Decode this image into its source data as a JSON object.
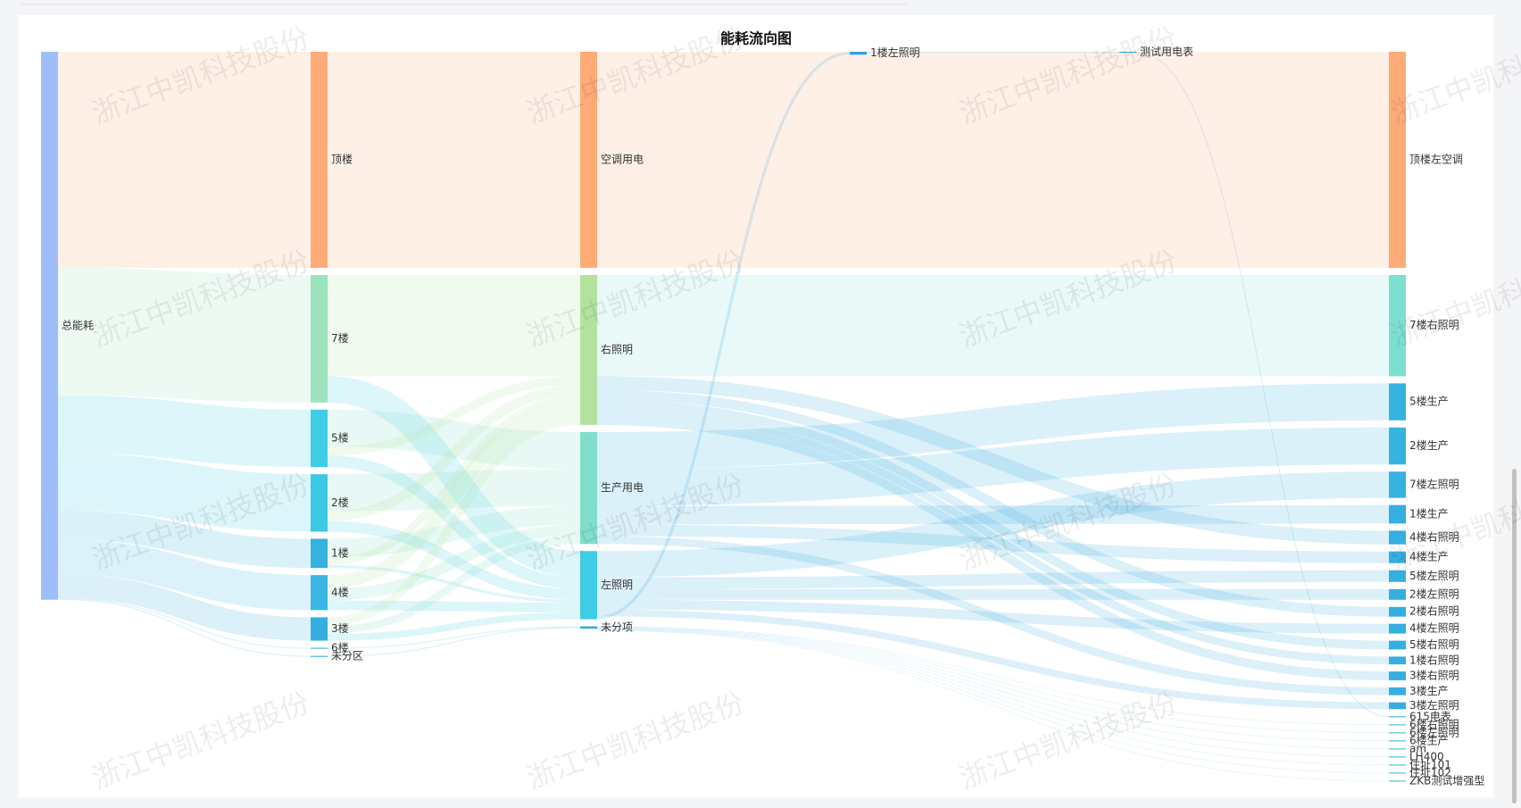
{
  "chart_data": {
    "type": "sankey",
    "title": "能耗流向图",
    "watermark": "浙江中凯科技股份",
    "nodes": [
      {
        "name": "总能耗",
        "color": "#9fbef9"
      },
      {
        "name": "顶楼",
        "color": "#ffab78"
      },
      {
        "name": "7楼",
        "color": "#9de3be"
      },
      {
        "name": "5楼",
        "color": "#3fcde6"
      },
      {
        "name": "2楼",
        "color": "#3dc8e4"
      },
      {
        "name": "1楼",
        "color": "#35b2e0"
      },
      {
        "name": "4楼",
        "color": "#3bb6e3"
      },
      {
        "name": "3楼",
        "color": "#35ade0"
      },
      {
        "name": "6楼",
        "color": "#35ade0"
      },
      {
        "name": "未分区",
        "color": "#35ade0"
      },
      {
        "name": "空调用电",
        "color": "#ffab78"
      },
      {
        "name": "右照明",
        "color": "#b4e29e"
      },
      {
        "name": "生产用电",
        "color": "#80deca"
      },
      {
        "name": "左照明",
        "color": "#3fcde6"
      },
      {
        "name": "未分项",
        "color": "#35ade0"
      },
      {
        "name": "1楼左照明",
        "color": "#35a0e0"
      },
      {
        "name": "测试用电表",
        "color": "#35a0e0"
      },
      {
        "name": "顶楼左空调",
        "color": "#ffab78"
      },
      {
        "name": "7楼右照明",
        "color": "#7ddfd0"
      },
      {
        "name": "5楼生产",
        "color": "#35b4e2"
      },
      {
        "name": "2楼生产",
        "color": "#35b4e2"
      },
      {
        "name": "7楼左照明",
        "color": "#35b4e2"
      },
      {
        "name": "1楼生产",
        "color": "#35aee0"
      },
      {
        "name": "4楼右照明",
        "color": "#35aee0"
      },
      {
        "name": "4楼生产",
        "color": "#35aee0"
      },
      {
        "name": "5楼左照明",
        "color": "#35aee0"
      },
      {
        "name": "2楼左照明",
        "color": "#35aee0"
      },
      {
        "name": "2楼右照明",
        "color": "#35aee0"
      },
      {
        "name": "4楼左照明",
        "color": "#35aee0"
      },
      {
        "name": "5楼右照明",
        "color": "#35aee0"
      },
      {
        "name": "1楼右照明",
        "color": "#35aee0"
      },
      {
        "name": "3楼右照明",
        "color": "#35aee0"
      },
      {
        "name": "3楼生产",
        "color": "#35aee0"
      },
      {
        "name": "3楼左照明",
        "color": "#35aee0"
      },
      {
        "name": "615电表",
        "color": "#35aee0"
      },
      {
        "name": "6楼右照明",
        "color": "#35aee0"
      },
      {
        "name": "6楼左照明",
        "color": "#35aee0"
      },
      {
        "name": "6楼生产",
        "color": "#35aee0"
      },
      {
        "name": "am",
        "color": "#35aee0"
      },
      {
        "name": "LH400",
        "color": "#35aee0"
      },
      {
        "name": "住址101",
        "color": "#35aee0"
      },
      {
        "name": "住址102",
        "color": "#35aee0"
      },
      {
        "name": "ZKB测试增强型",
        "color": "#35aee0"
      }
    ],
    "links": [
      {
        "source": 0,
        "target": 1,
        "value": 222
      },
      {
        "source": 0,
        "target": 2,
        "value": 131
      },
      {
        "source": 0,
        "target": 3,
        "value": 59
      },
      {
        "source": 0,
        "target": 4,
        "value": 59
      },
      {
        "source": 0,
        "target": 5,
        "value": 30
      },
      {
        "source": 0,
        "target": 6,
        "value": 36
      },
      {
        "source": 0,
        "target": 7,
        "value": 24
      },
      {
        "source": 0,
        "target": 8,
        "value": 1
      },
      {
        "source": 0,
        "target": 9,
        "value": 1
      },
      {
        "source": 1,
        "target": 10,
        "value": 222
      },
      {
        "source": 2,
        "target": 11,
        "value": 104
      },
      {
        "source": 2,
        "target": 13,
        "value": 27
      },
      {
        "source": 3,
        "target": 12,
        "value": 38
      },
      {
        "source": 3,
        "target": 11,
        "value": 9
      },
      {
        "source": 3,
        "target": 13,
        "value": 12
      },
      {
        "source": 4,
        "target": 12,
        "value": 38
      },
      {
        "source": 4,
        "target": 11,
        "value": 10
      },
      {
        "source": 4,
        "target": 13,
        "value": 11
      },
      {
        "source": 5,
        "target": 12,
        "value": 19
      },
      {
        "source": 5,
        "target": 11,
        "value": 8
      },
      {
        "source": 5,
        "target": 13,
        "value": 3
      },
      {
        "source": 6,
        "target": 11,
        "value": 14
      },
      {
        "source": 6,
        "target": 12,
        "value": 12
      },
      {
        "source": 6,
        "target": 13,
        "value": 10
      },
      {
        "source": 7,
        "target": 11,
        "value": 9
      },
      {
        "source": 7,
        "target": 12,
        "value": 8
      },
      {
        "source": 7,
        "target": 13,
        "value": 7
      },
      {
        "source": 8,
        "target": 14,
        "value": 1
      },
      {
        "source": 9,
        "target": 14,
        "value": 1
      },
      {
        "source": 10,
        "target": 17,
        "value": 222
      },
      {
        "source": 11,
        "target": 18,
        "value": 104
      },
      {
        "source": 11,
        "target": 23,
        "value": 14
      },
      {
        "source": 11,
        "target": 27,
        "value": 10
      },
      {
        "source": 11,
        "target": 29,
        "value": 9
      },
      {
        "source": 11,
        "target": 30,
        "value": 8
      },
      {
        "source": 11,
        "target": 31,
        "value": 9
      },
      {
        "source": 12,
        "target": 19,
        "value": 38
      },
      {
        "source": 12,
        "target": 20,
        "value": 38
      },
      {
        "source": 12,
        "target": 22,
        "value": 19
      },
      {
        "source": 12,
        "target": 24,
        "value": 12
      },
      {
        "source": 12,
        "target": 32,
        "value": 8
      },
      {
        "source": 13,
        "target": 21,
        "value": 27
      },
      {
        "source": 13,
        "target": 25,
        "value": 12
      },
      {
        "source": 13,
        "target": 26,
        "value": 11
      },
      {
        "source": 13,
        "target": 28,
        "value": 10
      },
      {
        "source": 13,
        "target": 33,
        "value": 7
      },
      {
        "source": 13,
        "target": 15,
        "value": 3
      },
      {
        "source": 15,
        "target": 16,
        "value": 1
      },
      {
        "source": 16,
        "target": 34,
        "value": 1
      },
      {
        "source": 14,
        "target": 35,
        "value": 0.3
      },
      {
        "source": 14,
        "target": 36,
        "value": 0.3
      },
      {
        "source": 14,
        "target": 37,
        "value": 0.3
      },
      {
        "source": 14,
        "target": 38,
        "value": 0.3
      },
      {
        "source": 14,
        "target": 39,
        "value": 0.3
      },
      {
        "source": 14,
        "target": 40,
        "value": 0.3
      },
      {
        "source": 14,
        "target": 41,
        "value": 0.3
      },
      {
        "source": 14,
        "target": 42,
        "value": 0.3
      }
    ]
  }
}
